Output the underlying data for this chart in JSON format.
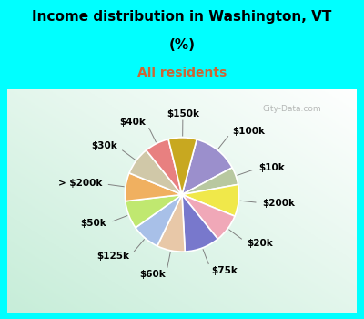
{
  "title_line1": "Income distribution in Washington, VT",
  "title_line2": "(%)",
  "subtitle": "All residents",
  "labels": [
    "$100k",
    "$10k",
    "$200k",
    "$20k",
    "$75k",
    "$60k",
    "$125k",
    "$50k",
    "> $200k",
    "$30k",
    "$40k",
    "$150k"
  ],
  "sizes": [
    13,
    5,
    9,
    8,
    10,
    8,
    8,
    8,
    8,
    8,
    7,
    8
  ],
  "colors": [
    "#9b8fcc",
    "#b8c8a0",
    "#f0e84a",
    "#f0a8b8",
    "#7878cc",
    "#e8c8a8",
    "#a8c0e8",
    "#c0e870",
    "#f0b060",
    "#d0c8a8",
    "#e88080",
    "#c8a820"
  ],
  "bg_top": "#00ffff",
  "label_fontsize": 7.5,
  "title_fontsize": 11,
  "subtitle_fontsize": 10,
  "subtitle_color": "#cc6633",
  "watermark": "City-Data.com",
  "startangle": 75
}
